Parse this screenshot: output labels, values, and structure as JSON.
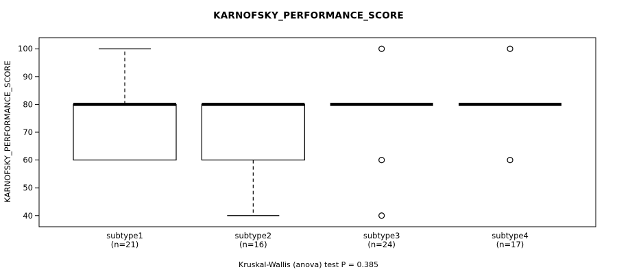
{
  "colors": {
    "foreground": "#000000",
    "background": "#ffffff"
  },
  "chart_data": {
    "type": "box",
    "title": "KARNOFSKY_PERFORMANCE_SCORE",
    "ylabel": "KARNOFSKY_PERFORMANCE_SCORE",
    "xlabel": "",
    "yticks": [
      40,
      50,
      60,
      70,
      80,
      90,
      100
    ],
    "ylim": [
      36,
      104
    ],
    "grid": false,
    "legend": "none",
    "groups": [
      {
        "label": "subtype1",
        "sublabel": "(n=21)",
        "q1": 60,
        "median": 80,
        "q3": 80,
        "whisker_low": 60,
        "whisker_high": 100,
        "outliers": []
      },
      {
        "label": "subtype2",
        "sublabel": "(n=16)",
        "q1": 60,
        "median": 80,
        "q3": 80,
        "whisker_low": 40,
        "whisker_high": 80,
        "outliers": []
      },
      {
        "label": "subtype3",
        "sublabel": "(n=24)",
        "q1": 80,
        "median": 80,
        "q3": 80,
        "whisker_low": 80,
        "whisker_high": 80,
        "outliers": [
          100,
          60,
          40
        ]
      },
      {
        "label": "subtype4",
        "sublabel": "(n=17)",
        "q1": 80,
        "median": 80,
        "q3": 80,
        "whisker_low": 80,
        "whisker_high": 80,
        "outliers": [
          100,
          60
        ]
      }
    ],
    "footnote": "Kruskal-Wallis (anova) test P = 0.385"
  }
}
